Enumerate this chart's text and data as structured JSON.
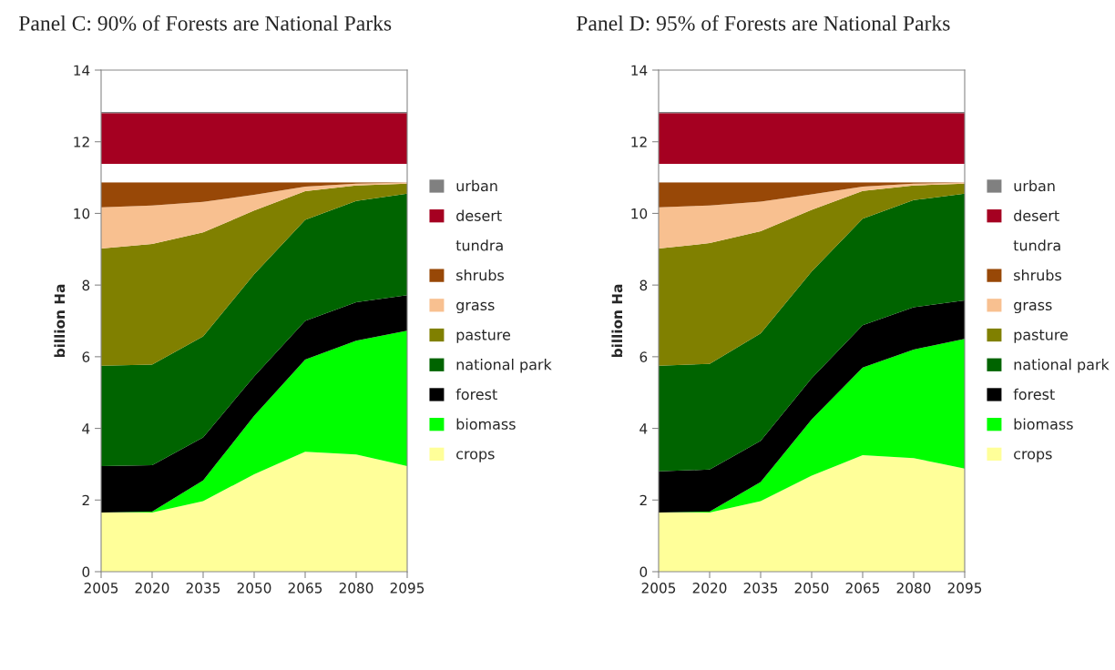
{
  "chart_data": [
    {
      "type": "area",
      "stacked": true,
      "title": "Panel C: 90% of Forests are National Parks",
      "ylabel": "billion Ha",
      "x": [
        2005,
        2020,
        2035,
        2050,
        2065,
        2080,
        2095
      ],
      "xlim": [
        2005,
        2095
      ],
      "xticks": [
        2005,
        2020,
        2035,
        2050,
        2065,
        2080,
        2095
      ],
      "ylim": [
        0,
        14
      ],
      "yticks": [
        0,
        2,
        4,
        6,
        8,
        10,
        12,
        14
      ],
      "legend": "right",
      "grid": false,
      "series": [
        {
          "name": "crops",
          "color": "#ffff99",
          "values": [
            1.65,
            1.65,
            1.97,
            2.72,
            3.35,
            3.27,
            2.95
          ]
        },
        {
          "name": "biomass",
          "color": "#00ff00",
          "values": [
            0,
            0.03,
            0.58,
            1.63,
            2.57,
            3.18,
            3.78
          ]
        },
        {
          "name": "forest",
          "color": "#000000",
          "values": [
            1.3,
            1.29,
            1.2,
            1.1,
            1.08,
            1.07,
            0.99
          ]
        },
        {
          "name": "national park",
          "color": "#006400",
          "values": [
            2.8,
            2.81,
            2.82,
            2.85,
            2.82,
            2.83,
            2.83
          ]
        },
        {
          "name": "pasture",
          "color": "#808000",
          "values": [
            3.27,
            3.37,
            2.9,
            1.78,
            0.8,
            0.43,
            0.28
          ]
        },
        {
          "name": "grass",
          "color": "#f8c090",
          "values": [
            1.15,
            1.07,
            0.85,
            0.44,
            0.13,
            0.05,
            0.03
          ]
        },
        {
          "name": "shrubs",
          "color": "#984807",
          "values": [
            0.7,
            0.65,
            0.55,
            0.35,
            0.12,
            0.04,
            0.01
          ]
        },
        {
          "name": "tundra",
          "color": "#ffffff",
          "values": [
            0.51,
            0.51,
            0.51,
            0.51,
            0.51,
            0.51,
            0.51
          ]
        },
        {
          "name": "desert",
          "color": "#a50021",
          "values": [
            1.42,
            1.42,
            1.42,
            1.42,
            1.42,
            1.42,
            1.42
          ]
        },
        {
          "name": "urban",
          "color": "#808080",
          "values": [
            0.03,
            0.03,
            0.03,
            0.03,
            0.03,
            0.03,
            0.03
          ]
        }
      ]
    },
    {
      "type": "area",
      "stacked": true,
      "title": "Panel D: 95% of Forests are National Parks",
      "ylabel": "billion Ha",
      "x": [
        2005,
        2020,
        2035,
        2050,
        2065,
        2080,
        2095
      ],
      "xlim": [
        2005,
        2095
      ],
      "xticks": [
        2005,
        2020,
        2035,
        2050,
        2065,
        2080,
        2095
      ],
      "ylim": [
        0,
        14
      ],
      "yticks": [
        0,
        2,
        4,
        6,
        8,
        10,
        12,
        14
      ],
      "legend": "right",
      "grid": false,
      "series": [
        {
          "name": "crops",
          "color": "#ffff99",
          "values": [
            1.65,
            1.65,
            1.97,
            2.68,
            3.25,
            3.17,
            2.88
          ]
        },
        {
          "name": "biomass",
          "color": "#00ff00",
          "values": [
            0,
            0.03,
            0.53,
            1.57,
            2.45,
            3.03,
            3.62
          ]
        },
        {
          "name": "forest",
          "color": "#000000",
          "values": [
            1.15,
            1.17,
            1.15,
            1.15,
            1.18,
            1.18,
            1.07
          ]
        },
        {
          "name": "national park",
          "color": "#006400",
          "values": [
            2.95,
            2.95,
            3.0,
            2.98,
            2.97,
            2.99,
            2.98
          ]
        },
        {
          "name": "pasture",
          "color": "#808000",
          "values": [
            3.27,
            3.37,
            2.85,
            1.72,
            0.78,
            0.41,
            0.28
          ]
        },
        {
          "name": "grass",
          "color": "#f8c090",
          "values": [
            1.15,
            1.05,
            0.83,
            0.43,
            0.12,
            0.05,
            0.03
          ]
        },
        {
          "name": "shrubs",
          "color": "#984807",
          "values": [
            0.7,
            0.65,
            0.54,
            0.34,
            0.12,
            0.04,
            0.01
          ]
        },
        {
          "name": "tundra",
          "color": "#ffffff",
          "values": [
            0.51,
            0.51,
            0.51,
            0.51,
            0.51,
            0.51,
            0.51
          ]
        },
        {
          "name": "desert",
          "color": "#a50021",
          "values": [
            1.42,
            1.42,
            1.42,
            1.42,
            1.42,
            1.42,
            1.42
          ]
        },
        {
          "name": "urban",
          "color": "#808080",
          "values": [
            0.03,
            0.03,
            0.03,
            0.03,
            0.03,
            0.03,
            0.03
          ]
        }
      ]
    }
  ]
}
